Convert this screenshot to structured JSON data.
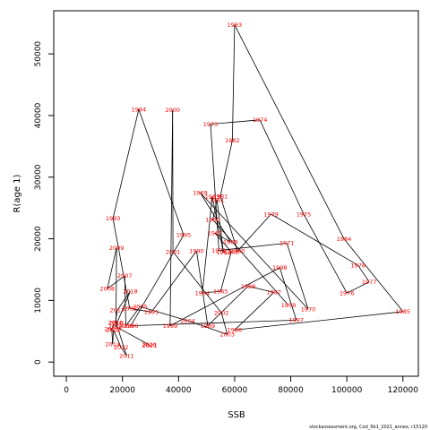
{
  "chart_data": {
    "type": "line",
    "title": "",
    "xlabel": "SSB",
    "ylabel": "R(age 1)",
    "xlim": [
      -4500,
      125500
    ],
    "ylim": [
      -2300,
      57000
    ],
    "xticks": [
      0,
      20000,
      40000,
      60000,
      80000,
      100000,
      120000
    ],
    "yticks": [
      0,
      10000,
      20000,
      30000,
      40000,
      50000
    ],
    "grid": false,
    "line_color": "#000000",
    "label_color": "#ff0000",
    "source_note": "stockassessment.org, Cod_5b1_2021_annex, r15120",
    "points": [
      {
        "year": "1959",
        "x": 79200,
        "y": 9200
      },
      {
        "year": "1960",
        "x": 52200,
        "y": 23100
      },
      {
        "year": "1961",
        "x": 53700,
        "y": 26300
      },
      {
        "year": "1962",
        "x": 56000,
        "y": 17800
      },
      {
        "year": "1963",
        "x": 52000,
        "y": 26800
      },
      {
        "year": "1964",
        "x": 48500,
        "y": 11200
      },
      {
        "year": "1965",
        "x": 55000,
        "y": 11500
      },
      {
        "year": "1966",
        "x": 58800,
        "y": 17900
      },
      {
        "year": "1967",
        "x": 53000,
        "y": 20900
      },
      {
        "year": "1968",
        "x": 58500,
        "y": 19500
      },
      {
        "year": "1969",
        "x": 47700,
        "y": 27500
      },
      {
        "year": "1970",
        "x": 86200,
        "y": 8600
      },
      {
        "year": "1971",
        "x": 78600,
        "y": 19300
      },
      {
        "year": "1972",
        "x": 54400,
        "y": 18100
      },
      {
        "year": "1973",
        "x": 51400,
        "y": 38600
      },
      {
        "year": "1974",
        "x": 69000,
        "y": 39300
      },
      {
        "year": "1975",
        "x": 84600,
        "y": 24000
      },
      {
        "year": "1976",
        "x": 100000,
        "y": 11200
      },
      {
        "year": "1977",
        "x": 108000,
        "y": 13000
      },
      {
        "year": "1978",
        "x": 104000,
        "y": 15700
      },
      {
        "year": "1979",
        "x": 73000,
        "y": 24000
      },
      {
        "year": "1980",
        "x": 61000,
        "y": 18000
      },
      {
        "year": "1981",
        "x": 54900,
        "y": 26900
      },
      {
        "year": "1982",
        "x": 59200,
        "y": 36000
      },
      {
        "year": "1983",
        "x": 60000,
        "y": 54700
      },
      {
        "year": "1984",
        "x": 99000,
        "y": 20000
      },
      {
        "year": "1985",
        "x": 120000,
        "y": 8200
      },
      {
        "year": "1986",
        "x": 60000,
        "y": 5200
      },
      {
        "year": "1987",
        "x": 74000,
        "y": 11300
      },
      {
        "year": "1988",
        "x": 64800,
        "y": 12300
      },
      {
        "year": "1989",
        "x": 50400,
        "y": 5900
      },
      {
        "year": "1990",
        "x": 46400,
        "y": 18000
      },
      {
        "year": "1991",
        "x": 30300,
        "y": 8100
      },
      {
        "year": "1992",
        "x": 22600,
        "y": 8700
      },
      {
        "year": "1993",
        "x": 16600,
        "y": 23300
      },
      {
        "year": "1994",
        "x": 25800,
        "y": 41000
      },
      {
        "year": "1995",
        "x": 41800,
        "y": 20600
      },
      {
        "year": "1996",
        "x": 23000,
        "y": 5900
      },
      {
        "year": "1997",
        "x": 82000,
        "y": 6800
      },
      {
        "year": "1998",
        "x": 76100,
        "y": 15300
      },
      {
        "year": "1999",
        "x": 37000,
        "y": 5900
      },
      {
        "year": "2000",
        "x": 37900,
        "y": 40900
      },
      {
        "year": "2001",
        "x": 38000,
        "y": 17900
      },
      {
        "year": "2002",
        "x": 55300,
        "y": 8000
      },
      {
        "year": "2003",
        "x": 57400,
        "y": 4500
      },
      {
        "year": "2004",
        "x": 43300,
        "y": 6700
      },
      {
        "year": "2005",
        "x": 26300,
        "y": 9000
      },
      {
        "year": "2006",
        "x": 21200,
        "y": 5900
      },
      {
        "year": "2007",
        "x": 20800,
        "y": 14000
      },
      {
        "year": "2008",
        "x": 14600,
        "y": 11900
      },
      {
        "year": "2009",
        "x": 17900,
        "y": 18500
      },
      {
        "year": "2010",
        "x": 17700,
        "y": 6400
      },
      {
        "year": "2011",
        "x": 21500,
        "y": 1000
      },
      {
        "year": "2012",
        "x": 19500,
        "y": 2400
      },
      {
        "year": "2013",
        "x": 16800,
        "y": 5200
      },
      {
        "year": "2014",
        "x": 16500,
        "y": 2900
      },
      {
        "year": "2015",
        "x": 16200,
        "y": 5400
      },
      {
        "year": "2016",
        "x": 17500,
        "y": 6400
      },
      {
        "year": "2017",
        "x": 18100,
        "y": 8400
      },
      {
        "year": "2018",
        "x": 22800,
        "y": 11500
      },
      {
        "year": "2019",
        "x": 17500,
        "y": 5800
      },
      {
        "year": "2020",
        "x": 29500,
        "y": 2800
      },
      {
        "year": "2021",
        "x": 29700,
        "y": 2700
      }
    ]
  }
}
